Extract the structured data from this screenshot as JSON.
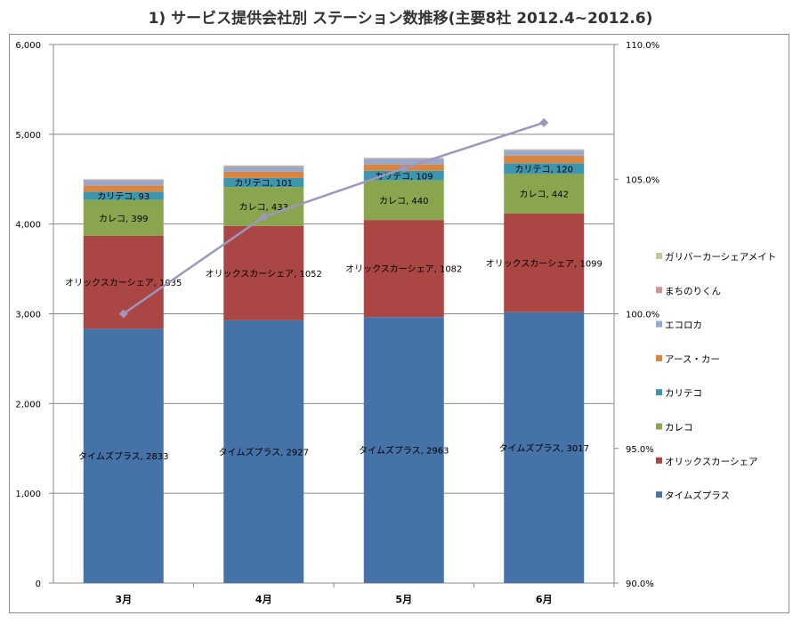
{
  "title": "1) サービス提供会社別 ステーション数推移(主要8社 2012.4~2012.6)",
  "colors": {
    "タイムズプラス": "#4572a7",
    "オリックスカーシェア": "#aa4643",
    "カレコ": "#89a54e",
    "カリテコ": "#3d96ae",
    "アース・カー": "#db843d",
    "エコロカ": "#93a9cf",
    "まちのりくん": "#d19392",
    "ガリバーカーシェアメイト": "#b9cd96",
    "line": "#a095bc"
  },
  "chart_data": {
    "type": "bar",
    "stacked": true,
    "categories": [
      "3月",
      "4月",
      "5月",
      "6月"
    ],
    "series": [
      {
        "name": "タイムズプラス",
        "values": [
          2833,
          2927,
          2963,
          3017
        ],
        "labels": [
          "タイムズプラス, 2833",
          "タイムズプラス, 2927",
          "タイムズプラス, 2963",
          "タイムズプラス, 3017"
        ]
      },
      {
        "name": "オリックスカーシェア",
        "values": [
          1035,
          1052,
          1082,
          1099
        ],
        "labels": [
          "オリックスカーシェア, 1035",
          "オリックスカーシェア, 1052",
          "オリックスカーシェア, 1082",
          "オリックスカーシェア, 1099"
        ]
      },
      {
        "name": "カレコ",
        "values": [
          399,
          433,
          440,
          442
        ],
        "labels": [
          "カレコ, 399",
          "カレコ, 433",
          "カレコ, 440",
          "カレコ, 442"
        ]
      },
      {
        "name": "カリテコ",
        "values": [
          93,
          101,
          109,
          120
        ],
        "labels": [
          "カリテコ, 93",
          "カリテコ, 101",
          "カリテコ, 109",
          "カリテコ, 120"
        ]
      },
      {
        "name": "アース・カー",
        "values": [
          70,
          70,
          70,
          85
        ],
        "labels": []
      },
      {
        "name": "エコロカ",
        "values": [
          55,
          55,
          60,
          55
        ],
        "labels": []
      },
      {
        "name": "まちのりくん",
        "values": [
          8,
          8,
          8,
          8
        ],
        "labels": []
      },
      {
        "name": "ガリバーカーシェアメイト",
        "values": [
          7,
          7,
          7,
          7
        ],
        "labels": []
      }
    ],
    "line_series": {
      "axis": "secondary",
      "values": [
        100.0,
        103.6,
        105.4,
        107.1
      ]
    },
    "y_primary": {
      "min": 0,
      "max": 6000,
      "step": 1000,
      "tick_labels": [
        "0",
        "1,000",
        "2,000",
        "3,000",
        "4,000",
        "5,000",
        "6,000"
      ]
    },
    "y_secondary": {
      "min": 90,
      "max": 110,
      "step": 5,
      "tick_labels": [
        "90.0%",
        "95.0%",
        "100.0%",
        "105.0%",
        "110.0%"
      ]
    },
    "grid": true,
    "legend_position": "right",
    "legend_order": [
      "ガリバーカーシェアメイト",
      "まちのりくん",
      "エコロカ",
      "アース・カー",
      "カリテコ",
      "カレコ",
      "オリックスカーシェア",
      "タイムズプラス"
    ]
  }
}
